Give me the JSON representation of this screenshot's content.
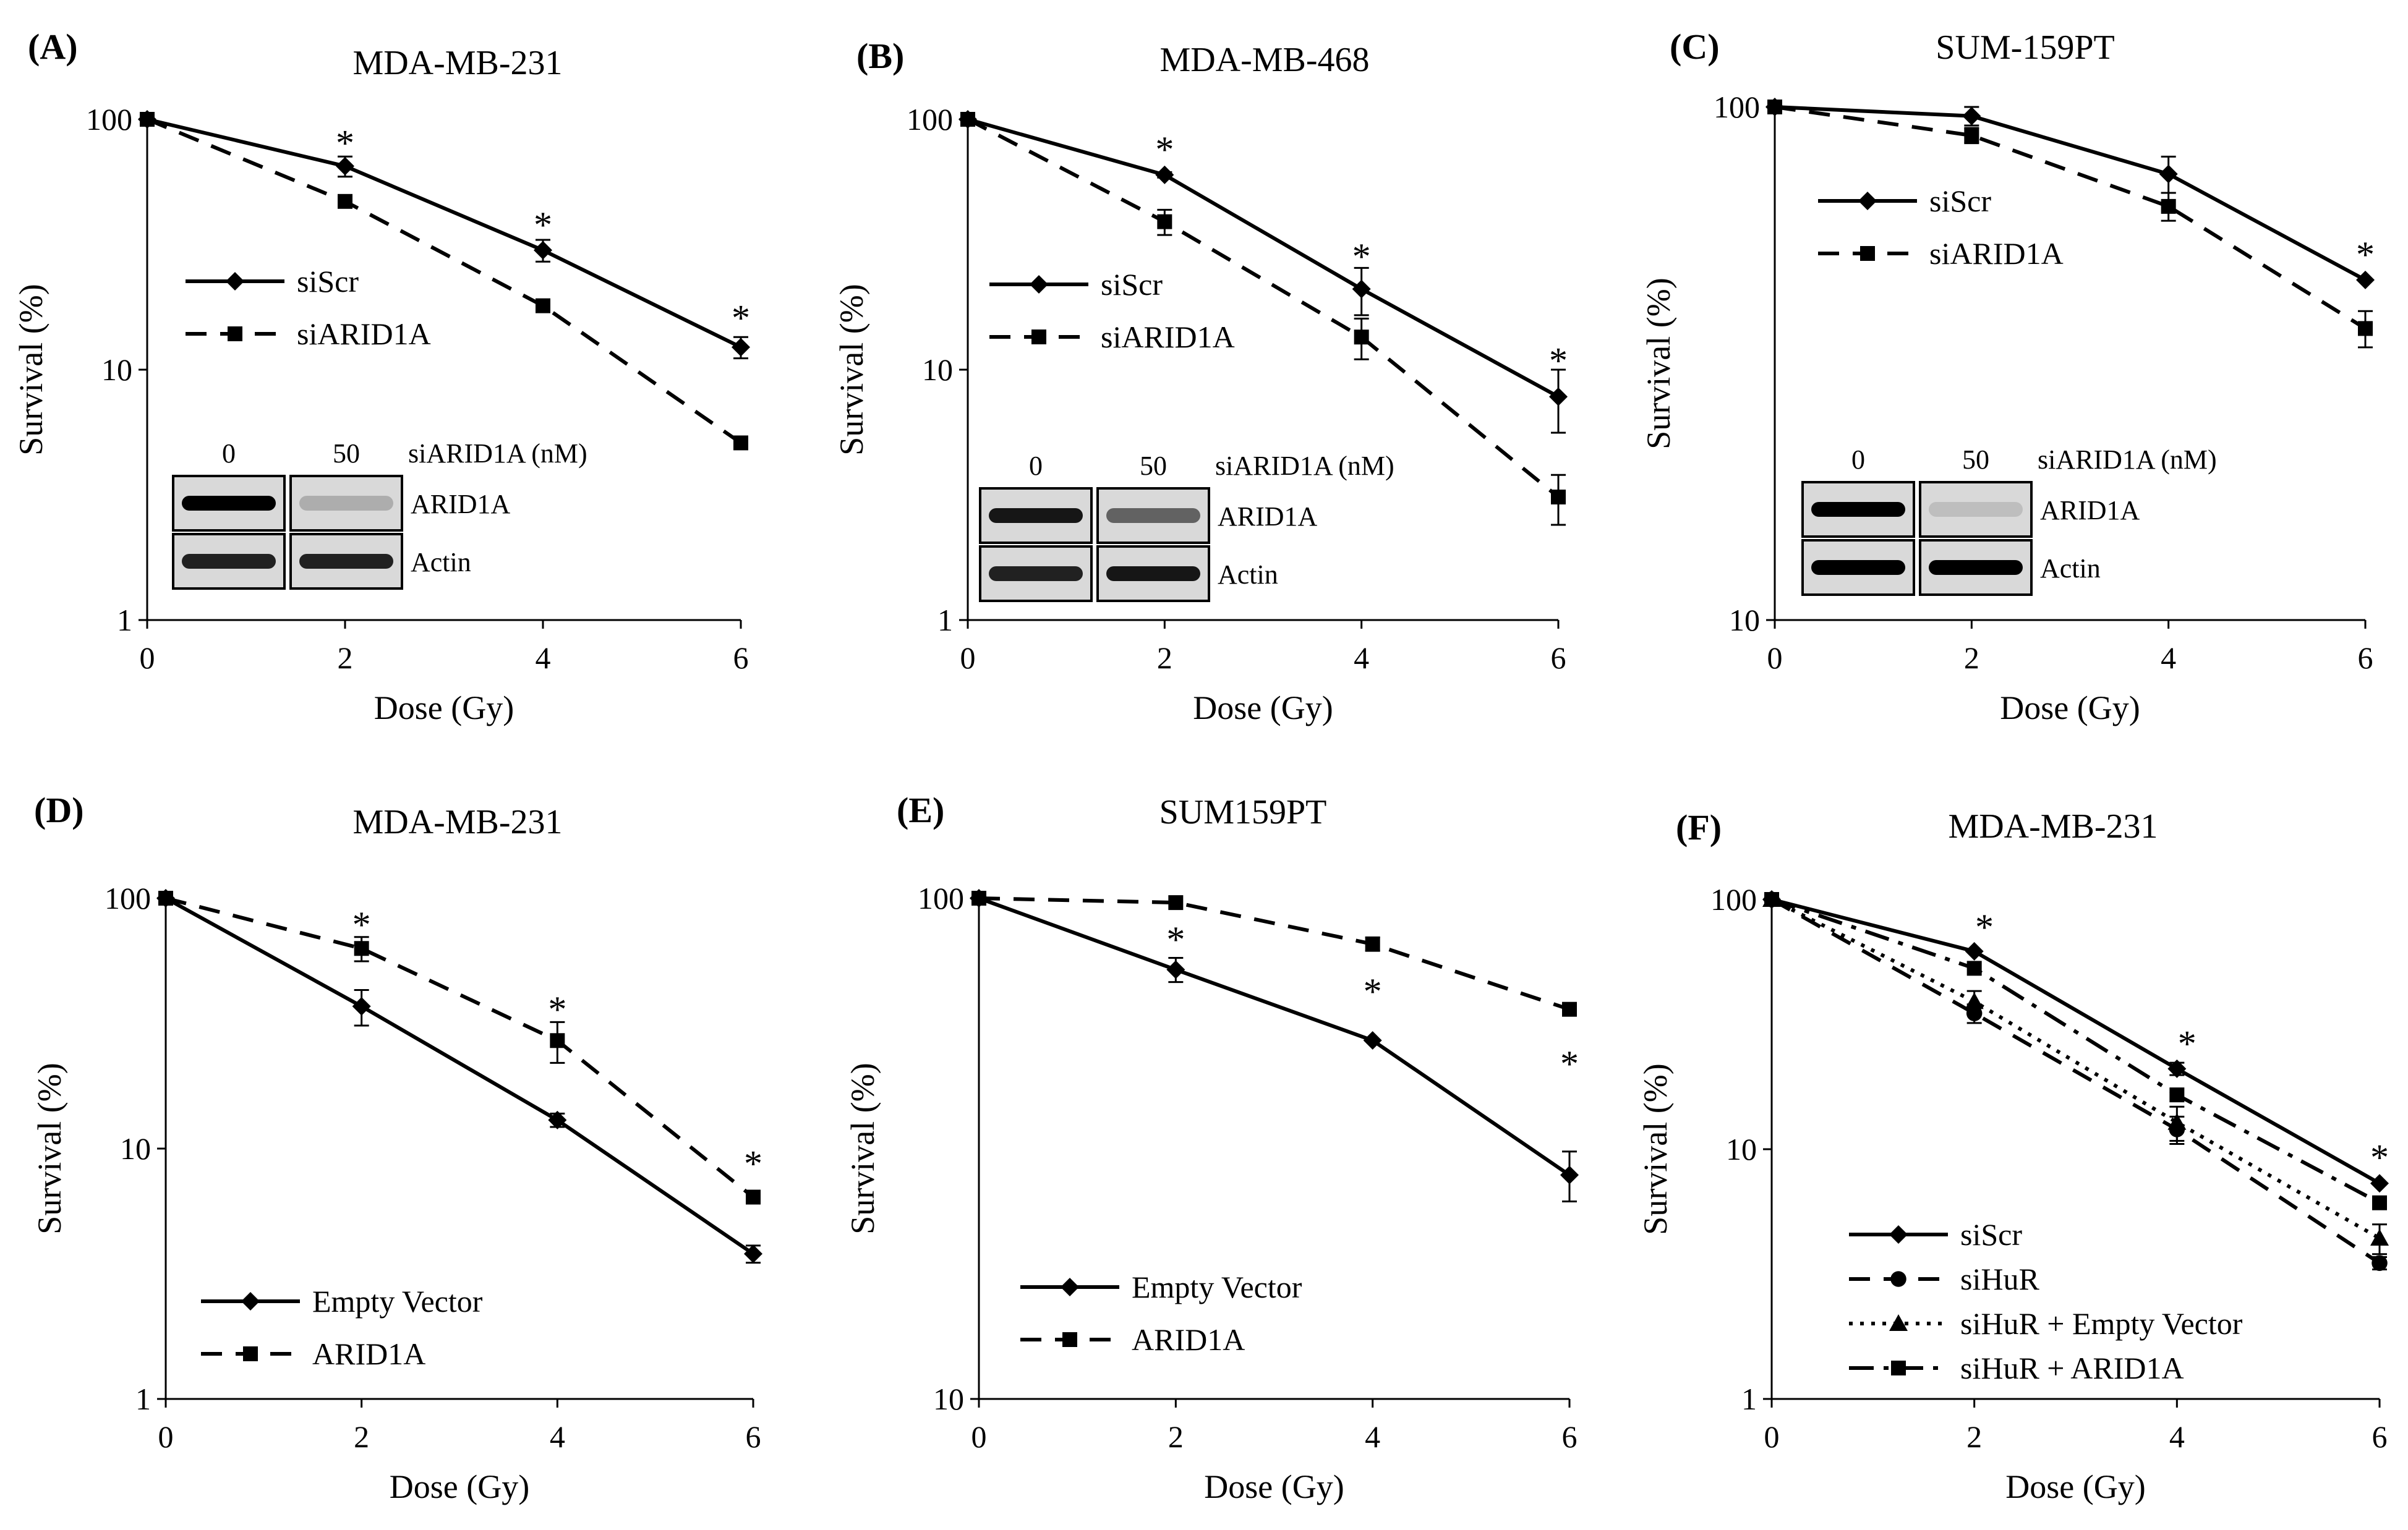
{
  "figure": {
    "background": "#ffffff",
    "line_color": "#000000",
    "blot_background": "#d9d9d9",
    "blot_band_color": "#000000"
  },
  "chart_data": [
    {
      "panel": "(A)",
      "type": "line",
      "title": "MDA-MB-231",
      "xlabel": "Dose (Gy)",
      "ylabel": "Survival (%)",
      "yscale": "log",
      "xlim": [
        0,
        6
      ],
      "ylim": [
        1,
        100
      ],
      "xticks": [
        "0",
        "2",
        "4",
        "6"
      ],
      "yticks": [
        "1",
        "10",
        "100"
      ],
      "x": [
        0,
        2,
        4,
        6
      ],
      "legend_position": "middle-left",
      "series": [
        {
          "name": "siScr",
          "style": "solid",
          "marker": "diamond",
          "values": [
            100,
            65,
            30,
            12.3
          ],
          "errors": [
            0,
            6,
            3,
            1.2
          ]
        },
        {
          "name": "siARID1A",
          "style": "dashed",
          "marker": "square",
          "values": [
            100,
            47,
            18,
            5.1
          ],
          "errors": [
            0,
            0,
            0,
            0
          ]
        }
      ],
      "significance": [
        {
          "x": 2,
          "y": 85,
          "label": "*"
        },
        {
          "x": 4,
          "y": 40,
          "label": "*"
        },
        {
          "x": 6,
          "y": 17,
          "label": "*"
        }
      ],
      "blot": {
        "lane_labels": [
          "0",
          "50"
        ],
        "treatment_label": "siARID1A (nM)",
        "rows": [
          {
            "label": "ARID1A",
            "bands": [
              1.0,
              0.2
            ]
          },
          {
            "label": "Actin",
            "bands": [
              0.85,
              0.85
            ]
          }
        ]
      }
    },
    {
      "panel": "(B)",
      "type": "line",
      "title": "MDA-MB-468",
      "xlabel": "Dose (Gy)",
      "ylabel": "Survival (%)",
      "yscale": "log",
      "xlim": [
        0,
        6
      ],
      "ylim": [
        1,
        100
      ],
      "xticks": [
        "0",
        "2",
        "4",
        "6"
      ],
      "yticks": [
        "1",
        "10",
        "100"
      ],
      "x": [
        0,
        2,
        4,
        6
      ],
      "legend_position": "middle-left",
      "series": [
        {
          "name": "siScr",
          "style": "solid",
          "marker": "diamond",
          "values": [
            100,
            60,
            21,
            7.8
          ],
          "errors": [
            0,
            1.5,
            4.5,
            2.2
          ]
        },
        {
          "name": "siARID1A",
          "style": "dashed",
          "marker": "square",
          "values": [
            100,
            39,
            13.5,
            3.1
          ],
          "errors": [
            0,
            4.5,
            2.5,
            0.7
          ]
        }
      ],
      "significance": [
        {
          "x": 2,
          "y": 80,
          "label": "*"
        },
        {
          "x": 4,
          "y": 30,
          "label": "*"
        },
        {
          "x": 6,
          "y": 11.5,
          "label": "*"
        }
      ],
      "blot": {
        "lane_labels": [
          "0",
          "50"
        ],
        "treatment_label": "siARID1A (nM)",
        "rows": [
          {
            "label": "ARID1A",
            "bands": [
              0.9,
              0.55
            ]
          },
          {
            "label": "Actin",
            "bands": [
              0.85,
              0.9
            ]
          }
        ]
      }
    },
    {
      "panel": "(C)",
      "type": "line",
      "title": "SUM-159PT",
      "xlabel": "Dose (Gy)",
      "ylabel": "Survival (%)",
      "yscale": "log",
      "xlim": [
        0,
        6
      ],
      "ylim": [
        10,
        100
      ],
      "xticks": [
        "0",
        "2",
        "4",
        "6"
      ],
      "yticks": [
        "10",
        "100"
      ],
      "x": [
        0,
        2,
        4,
        6
      ],
      "legend_position": "upper-left",
      "series": [
        {
          "name": "siScr",
          "style": "solid",
          "marker": "diamond",
          "values": [
            100,
            96,
            74,
            46
          ],
          "errors": [
            0,
            4,
            6,
            0
          ]
        },
        {
          "name": "siARID1A",
          "style": "dashed",
          "marker": "square",
          "values": [
            100,
            88,
            64,
            37
          ],
          "errors": [
            0,
            3,
            4,
            3
          ]
        }
      ],
      "significance": [
        {
          "x": 6,
          "y": 53,
          "label": "*"
        }
      ],
      "blot": {
        "lane_labels": [
          "0",
          "50"
        ],
        "treatment_label": "siARID1A (nM)",
        "rows": [
          {
            "label": "ARID1A",
            "bands": [
              1.0,
              0.12
            ]
          },
          {
            "label": "Actin",
            "bands": [
              1.0,
              1.0
            ]
          }
        ]
      }
    },
    {
      "panel": "(D)",
      "type": "line",
      "title": "MDA-MB-231",
      "xlabel": "Dose (Gy)",
      "ylabel": "Survival (%)",
      "yscale": "log",
      "xlim": [
        0,
        6
      ],
      "ylim": [
        1,
        100
      ],
      "xticks": [
        "0",
        "2",
        "4",
        "6"
      ],
      "yticks": [
        "1",
        "10",
        "100"
      ],
      "x": [
        0,
        2,
        4,
        6
      ],
      "legend_position": "lower-left",
      "series": [
        {
          "name": "Empty Vector",
          "style": "solid",
          "marker": "diamond",
          "values": [
            100,
            37,
            13,
            3.8
          ],
          "errors": [
            0,
            6,
            0.8,
            0.3
          ]
        },
        {
          "name": "ARID1A",
          "style": "dashed",
          "marker": "square",
          "values": [
            100,
            63,
            27,
            6.4
          ],
          "errors": [
            0,
            7,
            5,
            0
          ]
        }
      ],
      "significance": [
        {
          "x": 2,
          "y": 83,
          "label": "*"
        },
        {
          "x": 4,
          "y": 38,
          "label": "*"
        },
        {
          "x": 6,
          "y": 9.2,
          "label": "*"
        }
      ]
    },
    {
      "panel": "(E)",
      "type": "line",
      "title": "SUM159PT",
      "xlabel": "Dose (Gy)",
      "ylabel": "Survival (%)",
      "yscale": "log",
      "xlim": [
        0,
        6
      ],
      "ylim": [
        10,
        100
      ],
      "xticks": [
        "0",
        "2",
        "4",
        "6"
      ],
      "yticks": [
        "10",
        "100"
      ],
      "x": [
        0,
        2,
        4,
        6
      ],
      "legend_position": "lower-left",
      "series": [
        {
          "name": "Empty Vector",
          "style": "solid",
          "marker": "diamond",
          "values": [
            100,
            72,
            52,
            28
          ],
          "errors": [
            0,
            4,
            0,
            3.2
          ]
        },
        {
          "name": "ARID1A",
          "style": "dashed",
          "marker": "square",
          "values": [
            100,
            98,
            81,
            60
          ],
          "errors": [
            0,
            0,
            2.5,
            0
          ]
        }
      ],
      "significance": [
        {
          "x": 2,
          "y": 85,
          "label": "*"
        },
        {
          "x": 4,
          "y": 67,
          "label": "*"
        },
        {
          "x": 6,
          "y": 48,
          "label": "*"
        }
      ]
    },
    {
      "panel": "(F)",
      "type": "line",
      "title": "MDA-MB-231",
      "xlabel": "Dose (Gy)",
      "ylabel": "Survival (%)",
      "yscale": "log",
      "xlim": [
        0,
        6
      ],
      "ylim": [
        1,
        100
      ],
      "xticks": [
        "0",
        "2",
        "4",
        "6"
      ],
      "yticks": [
        "1",
        "10",
        "100"
      ],
      "x": [
        0,
        2,
        4,
        6
      ],
      "legend_position": "lower-left",
      "series": [
        {
          "name": "siScr",
          "style": "solid",
          "marker": "diamond",
          "values": [
            100,
            62,
            21,
            7.3
          ],
          "errors": [
            0,
            0,
            1.2,
            0
          ]
        },
        {
          "name": "siHuR",
          "style": "dashed",
          "marker": "circle",
          "values": [
            100,
            35,
            12,
            3.5
          ],
          "errors": [
            0,
            3,
            1.5,
            0.2
          ]
        },
        {
          "name": "siHuR + Empty Vector",
          "style": "dotted",
          "marker": "triangle",
          "values": [
            100,
            39,
            12.8,
            4.4
          ],
          "errors": [
            0,
            4,
            2,
            0.6
          ]
        },
        {
          "name": "siHuR + ARID1A",
          "style": "dashdot",
          "marker": "square",
          "values": [
            100,
            53,
            16.5,
            6.1
          ],
          "errors": [
            0,
            0,
            0,
            0
          ]
        }
      ],
      "significance": [
        {
          "x": 2.1,
          "y": 82,
          "label": "*"
        },
        {
          "x": 4.1,
          "y": 28,
          "label": "*"
        },
        {
          "x": 6,
          "y": 9.8,
          "label": "*"
        }
      ]
    }
  ]
}
